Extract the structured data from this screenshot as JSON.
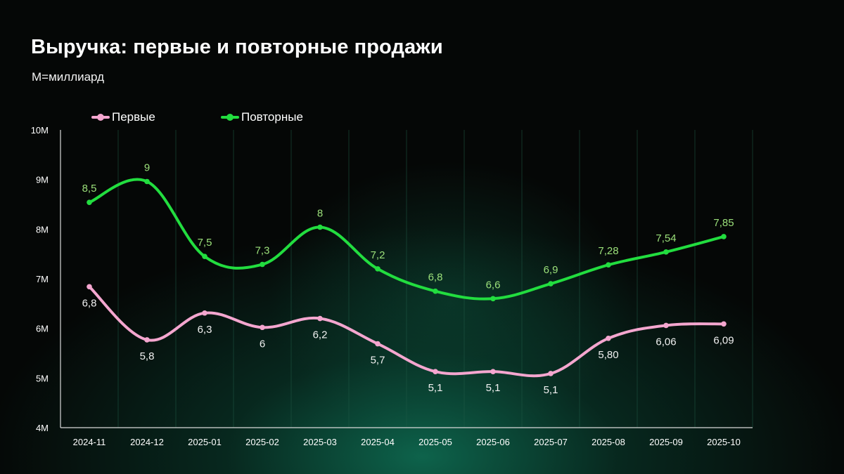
{
  "title": "Выручка: первые и повторные продажи",
  "subtitle": "M=миллиард",
  "colors": {
    "background": "#050706",
    "first": "#f4a6cf",
    "repeat": "#22dd3f",
    "repeat_label": "#9be07a",
    "first_label": "#f1f1f1",
    "axis_text": "#ffffff",
    "gridline": "#1f5a45"
  },
  "legend": [
    {
      "label": "Первые",
      "color": "#f4a6cf"
    },
    {
      "label": "Повторные",
      "color": "#22dd3f"
    }
  ],
  "chart_data": {
    "type": "line",
    "title": "Выручка: первые и повторные продажи",
    "subtitle": "M=миллиард",
    "xlabel": "",
    "ylabel": "",
    "categories": [
      "2024-11",
      "2024-12",
      "2025-01",
      "2025-02",
      "2025-03",
      "2025-04",
      "2025-05",
      "2025-06",
      "2025-07",
      "2025-08",
      "2025-09",
      "2025-10"
    ],
    "ylim": [
      4,
      10
    ],
    "yticks": [
      4,
      5,
      6,
      7,
      8,
      9,
      10
    ],
    "ytick_labels": [
      "4M",
      "5M",
      "6M",
      "7M",
      "8M",
      "9M",
      "10M"
    ],
    "grid": "vertical",
    "legend_position": "top-left",
    "series": [
      {
        "name": "Первые",
        "color": "#f4a6cf",
        "values": [
          6.84,
          5.77,
          6.31,
          6.02,
          6.2,
          5.69,
          5.13,
          5.13,
          5.09,
          5.8,
          6.06,
          6.09
        ],
        "labels": [
          "6,8",
          "5,8",
          "6,3",
          "6",
          "6,2",
          "5,7",
          "5,1",
          "5,1",
          "5,1",
          "5,80",
          "6,06",
          "6,09"
        ],
        "label_position": "below"
      },
      {
        "name": "Повторные",
        "color": "#22dd3f",
        "values": [
          8.54,
          8.96,
          7.45,
          7.29,
          8.04,
          7.2,
          6.75,
          6.6,
          6.9,
          7.28,
          7.54,
          7.85
        ],
        "labels": [
          "8,5",
          "9",
          "7,5",
          "7,3",
          "8",
          "7,2",
          "6,8",
          "6,6",
          "6,9",
          "7,28",
          "7,54",
          "7,85"
        ],
        "label_position": "above"
      }
    ]
  }
}
